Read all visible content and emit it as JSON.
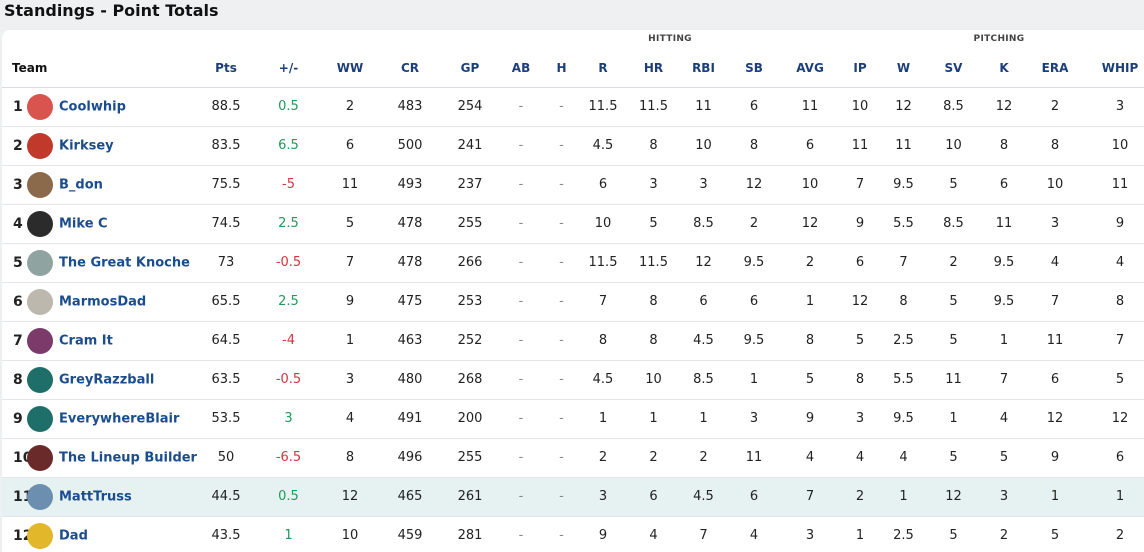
{
  "page_title": "Standings - Point Totals",
  "groups": {
    "hitting": "HITTING",
    "pitching": "PITCHING"
  },
  "columns": [
    "Team",
    "Pts",
    "+/-",
    "WW",
    "CR",
    "GP",
    "AB",
    "H",
    "R",
    "HR",
    "RBI",
    "SB",
    "AVG",
    "IP",
    "W",
    "SV",
    "K",
    "ERA",
    "WHIP"
  ],
  "colors": {
    "positive": "#1f9a5a",
    "negative": "#d3343f",
    "team_link": "#1b4d8e",
    "highlight_row": "#e6f2f2"
  },
  "rows": [
    {
      "rank": "1",
      "team": "Coolwhip",
      "avatar_icon": "cup-icon",
      "avatar_color": "#d9534f",
      "pts": "88.5",
      "diff": "0.5",
      "ww": "2",
      "cr": "483",
      "gp": "254",
      "ab": "-",
      "h": "-",
      "r": "11.5",
      "hr": "11.5",
      "rbi": "11",
      "sb": "6",
      "avg": "11",
      "ip": "10",
      "w": "12",
      "sv": "8.5",
      "k": "12",
      "era": "2",
      "whip": "3"
    },
    {
      "rank": "2",
      "team": "Kirksey",
      "avatar_icon": "helmet-icon",
      "avatar_color": "#c0392b",
      "pts": "83.5",
      "diff": "6.5",
      "ww": "6",
      "cr": "500",
      "gp": "241",
      "ab": "-",
      "h": "-",
      "r": "4.5",
      "hr": "8",
      "rbi": "10",
      "sb": "8",
      "avg": "6",
      "ip": "11",
      "w": "11",
      "sv": "10",
      "k": "8",
      "era": "8",
      "whip": "10"
    },
    {
      "rank": "3",
      "team": "B_don",
      "avatar_icon": "baseball-icon",
      "avatar_color": "#8a6a4a",
      "pts": "75.5",
      "diff": "-5",
      "ww": "11",
      "cr": "493",
      "gp": "237",
      "ab": "-",
      "h": "-",
      "r": "6",
      "hr": "3",
      "rbi": "3",
      "sb": "12",
      "avg": "10",
      "ip": "7",
      "w": "9.5",
      "sv": "5",
      "k": "6",
      "era": "10",
      "whip": "11"
    },
    {
      "rank": "4",
      "team": "Mike C",
      "avatar_icon": "penguin-icon",
      "avatar_color": "#2b2b2b",
      "pts": "74.5",
      "diff": "2.5",
      "ww": "5",
      "cr": "478",
      "gp": "255",
      "ab": "-",
      "h": "-",
      "r": "10",
      "hr": "5",
      "rbi": "8.5",
      "sb": "2",
      "avg": "12",
      "ip": "9",
      "w": "5.5",
      "sv": "8.5",
      "k": "11",
      "era": "3",
      "whip": "9"
    },
    {
      "rank": "5",
      "team": "The Great Knoche",
      "avatar_icon": "landscape-icon",
      "avatar_color": "#8fa3a0",
      "pts": "73",
      "diff": "-0.5",
      "ww": "7",
      "cr": "478",
      "gp": "266",
      "ab": "-",
      "h": "-",
      "r": "11.5",
      "hr": "11.5",
      "rbi": "12",
      "sb": "9.5",
      "avg": "2",
      "ip": "6",
      "w": "7",
      "sv": "2",
      "k": "9.5",
      "era": "4",
      "whip": "4"
    },
    {
      "rank": "6",
      "team": "MarmosDad",
      "avatar_icon": "dog-icon",
      "avatar_color": "#bdb8ae",
      "pts": "65.5",
      "diff": "2.5",
      "ww": "9",
      "cr": "475",
      "gp": "253",
      "ab": "-",
      "h": "-",
      "r": "7",
      "hr": "8",
      "rbi": "6",
      "sb": "6",
      "avg": "1",
      "ip": "12",
      "w": "8",
      "sv": "5",
      "k": "9.5",
      "era": "7",
      "whip": "8"
    },
    {
      "rank": "7",
      "team": "Cram It",
      "avatar_icon": "cap-icon",
      "avatar_color": "#7b3a6a",
      "pts": "64.5",
      "diff": "-4",
      "ww": "1",
      "cr": "463",
      "gp": "252",
      "ab": "-",
      "h": "-",
      "r": "8",
      "hr": "8",
      "rbi": "4.5",
      "sb": "9.5",
      "avg": "8",
      "ip": "5",
      "w": "2.5",
      "sv": "5",
      "k": "1",
      "era": "11",
      "whip": "7"
    },
    {
      "rank": "8",
      "team": "GreyRazzball",
      "avatar_icon": "jersey-icon",
      "avatar_color": "#1e6f6a",
      "pts": "63.5",
      "diff": "-0.5",
      "ww": "3",
      "cr": "480",
      "gp": "268",
      "ab": "-",
      "h": "-",
      "r": "4.5",
      "hr": "10",
      "rbi": "8.5",
      "sb": "1",
      "avg": "5",
      "ip": "8",
      "w": "5.5",
      "sv": "11",
      "k": "7",
      "era": "6",
      "whip": "5"
    },
    {
      "rank": "9",
      "team": "EverywhereBlair",
      "avatar_icon": "jersey-icon",
      "avatar_color": "#1e6f6a",
      "pts": "53.5",
      "diff": "3",
      "ww": "4",
      "cr": "491",
      "gp": "200",
      "ab": "-",
      "h": "-",
      "r": "1",
      "hr": "1",
      "rbi": "1",
      "sb": "3",
      "avg": "9",
      "ip": "3",
      "w": "9.5",
      "sv": "1",
      "k": "4",
      "era": "12",
      "whip": "12"
    },
    {
      "rank": "10",
      "team": "The Lineup Builder",
      "avatar_icon": "jersey-icon",
      "avatar_color": "#6b2a2a",
      "pts": "50",
      "diff": "-6.5",
      "ww": "8",
      "cr": "496",
      "gp": "255",
      "ab": "-",
      "h": "-",
      "r": "2",
      "hr": "2",
      "rbi": "2",
      "sb": "11",
      "avg": "4",
      "ip": "4",
      "w": "4",
      "sv": "5",
      "k": "5",
      "era": "9",
      "whip": "6"
    },
    {
      "rank": "11",
      "team": "MattTruss",
      "avatar_icon": "person-icon",
      "avatar_color": "#6c8fb0",
      "pts": "44.5",
      "diff": "0.5",
      "ww": "12",
      "cr": "465",
      "gp": "261",
      "ab": "-",
      "h": "-",
      "r": "3",
      "hr": "6",
      "rbi": "4.5",
      "sb": "6",
      "avg": "7",
      "ip": "2",
      "w": "1",
      "sv": "12",
      "k": "3",
      "era": "1",
      "whip": "1",
      "highlight": true
    },
    {
      "rank": "12",
      "team": "Dad",
      "avatar_icon": "trophy-icon",
      "avatar_color": "#e2b72a",
      "pts": "43.5",
      "diff": "1",
      "ww": "10",
      "cr": "459",
      "gp": "281",
      "ab": "-",
      "h": "-",
      "r": "9",
      "hr": "4",
      "rbi": "7",
      "sb": "4",
      "avg": "3",
      "ip": "1",
      "w": "2.5",
      "sv": "5",
      "k": "2",
      "era": "5",
      "whip": "2"
    }
  ]
}
